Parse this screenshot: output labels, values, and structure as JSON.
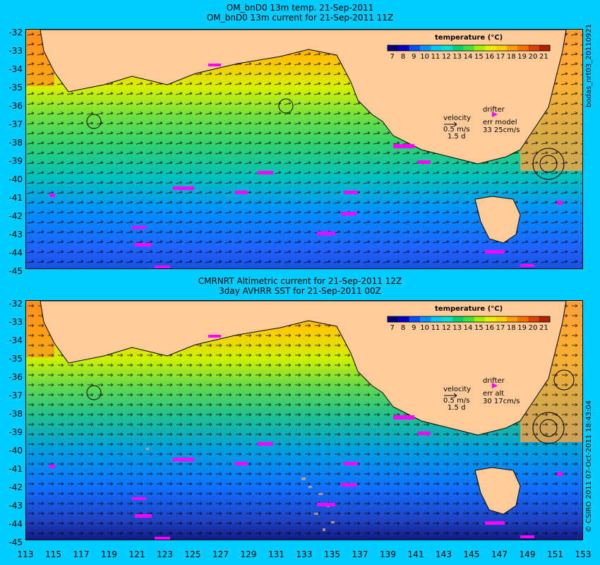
{
  "panels": [
    {
      "title_line1": "OM_bnD0 13m temp. 21-Sep-2011",
      "title_line2": "OM_bnD0 13m current for 21-Sep-2011 11Z",
      "colorbar_title": "temperature (°C)",
      "velocity_label": "velocity",
      "velocity_scale": "0.5 m/s",
      "velocity_time": "1.5 d",
      "drifter_label": "drifter",
      "err_label": "err model",
      "err_value": "33 25cm/s",
      "side_text": "bodas_nrt03_20110921"
    },
    {
      "title_line1": "CMRNRT Altimetric current for 21-Sep-2011 12Z",
      "title_line2": "3day AVHRR SST for 21-Sep-2011 00Z",
      "colorbar_title": "temperature (°C)",
      "velocity_label": "velocity",
      "velocity_scale": "0.5 m/s",
      "velocity_time": "1.5 d",
      "drifter_label": "drifter",
      "err_label": "err alt",
      "err_value": "30 17cm/s",
      "side_text": "© CSIRO 2011   07-Oct-2011 18:43:04"
    }
  ],
  "colorbar_ticks": [
    "7",
    "8",
    "9",
    "10",
    "11",
    "12",
    "13",
    "14",
    "15",
    "16",
    "17",
    "18",
    "19",
    "20",
    "21"
  ],
  "lat_ticks": [
    "-32",
    "-33",
    "-34",
    "-35",
    "-36",
    "-37",
    "-38",
    "-39",
    "-40",
    "-41",
    "-42",
    "-43",
    "-44",
    "-45"
  ],
  "lon_ticks": [
    "113",
    "115",
    "117",
    "119",
    "121",
    "123",
    "125",
    "127",
    "129",
    "131",
    "133",
    "135",
    "137",
    "139",
    "141",
    "143",
    "145",
    "147",
    "149",
    "151",
    "153"
  ],
  "colors": {
    "background": "#00ccff",
    "land": "#ffcc99",
    "drifter": "#ff00ff",
    "contour": "#33cccc"
  },
  "colorbar_colors": [
    "#000080",
    "#0000c8",
    "#0050ff",
    "#0090ff",
    "#00c8ff",
    "#00e0d0",
    "#00d070",
    "#40e040",
    "#a0f000",
    "#e8f000",
    "#ffd000",
    "#ffa000",
    "#ff7000",
    "#e04000",
    "#b02000"
  ]
}
